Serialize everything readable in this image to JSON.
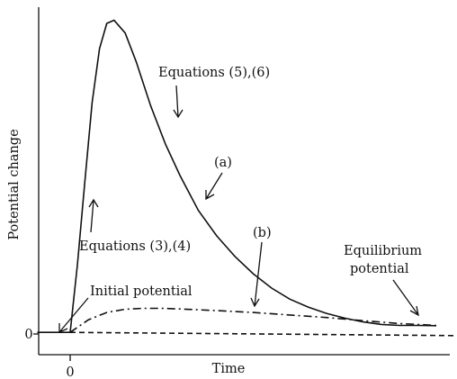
{
  "chart_data": {
    "type": "line",
    "title": "",
    "xlabel": "Time",
    "ylabel": "Potential change",
    "x_ticks": [
      "0"
    ],
    "y_ticks": [
      "0"
    ],
    "xlim": [
      -1,
      10
    ],
    "ylim": [
      0,
      10
    ],
    "grid": false,
    "series": [
      {
        "style": "solid",
        "x": [
          -0.9,
          -0.4,
          0,
          0.2,
          0.4,
          0.6,
          0.8,
          1.0,
          1.2,
          1.5,
          1.8,
          2.2,
          2.6,
          3.0,
          3.5,
          4.0,
          4.5,
          5.0,
          5.5,
          6.0,
          6.5,
          7.0,
          7.5,
          8.0,
          8.5,
          9.0,
          9.5,
          10.0
        ],
        "y": [
          0.05,
          0.05,
          0.05,
          2.2,
          4.8,
          7.3,
          9.0,
          9.8,
          9.9,
          9.5,
          8.6,
          7.2,
          6.0,
          5.0,
          3.9,
          3.1,
          2.45,
          1.9,
          1.45,
          1.1,
          0.85,
          0.65,
          0.5,
          0.38,
          0.3,
          0.27,
          0.27,
          0.26
        ]
      },
      {
        "style": "dashdot",
        "x": [
          0,
          0.5,
          1.0,
          1.5,
          2.0,
          2.5,
          3.0,
          4.0,
          5.0,
          6.0,
          7.0,
          8.0,
          9.0,
          10.0
        ],
        "y": [
          0.05,
          0.45,
          0.68,
          0.78,
          0.81,
          0.81,
          0.79,
          0.74,
          0.68,
          0.6,
          0.52,
          0.42,
          0.33,
          0.27
        ]
      },
      {
        "style": "dashed",
        "x": [
          0,
          10.5
        ],
        "y": [
          0.05,
          -0.05
        ]
      }
    ],
    "annotations": [
      {
        "text": "Equations (5),(6)",
        "x": 3.6,
        "y": 8.1
      },
      {
        "text": "(a)",
        "x": 4.0,
        "y": 5.2
      },
      {
        "text": "(b)",
        "x": 5.4,
        "y": 3.2
      },
      {
        "text": "Equations (3),(4)",
        "x": 1.1,
        "y": 2.6
      },
      {
        "text": "Initial potential",
        "x": 1.6,
        "y": 1.2
      },
      {
        "text": "Equilibrium",
        "x": 8.6,
        "y": 2.4
      },
      {
        "text": "potential",
        "x": 8.6,
        "y": 1.9
      }
    ]
  }
}
